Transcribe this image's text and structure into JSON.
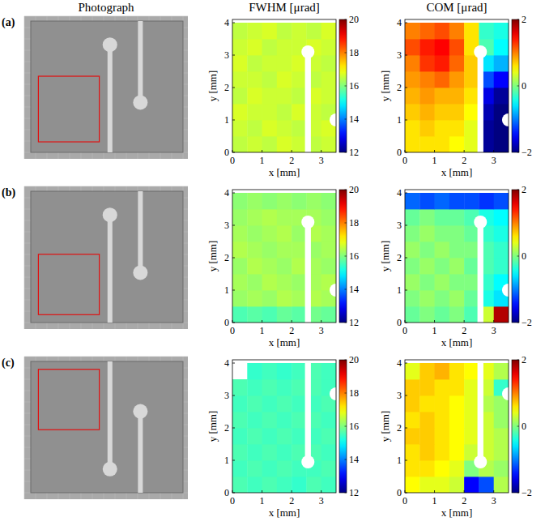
{
  "figure": {
    "column_titles": [
      "Photograph",
      "FWHM [μrad]",
      "COM [μrad]"
    ],
    "rows": [
      "(a)",
      "(b)",
      "(c)"
    ]
  },
  "chart_data": [
    {
      "type": "heatmap",
      "xlabel": "x [mm]",
      "ylabel": "y [mm]",
      "xlim": [
        0,
        3.5
      ],
      "ylim": [
        0,
        4.1
      ],
      "xticks": [
        0,
        1,
        2,
        3
      ],
      "yticks": [
        0,
        1,
        2,
        3,
        4
      ],
      "x_edges": [
        0,
        0.5,
        1,
        1.5,
        2,
        2.5,
        3,
        3.5
      ],
      "y_edges": [
        0,
        0.5,
        1,
        1.5,
        2,
        2.5,
        3,
        3.5,
        4
      ],
      "color": "jet",
      "colorbar_range": [
        12,
        20
      ],
      "colorbar_ticks": [
        12,
        14,
        16,
        18,
        20
      ],
      "cells": [
        [
          16.5,
          16.6,
          16.5,
          16.7,
          16.6,
          16.5,
          16.6
        ],
        [
          16.6,
          16.5,
          16.7,
          16.6,
          16.5,
          16.6,
          16.7
        ],
        [
          16.7,
          16.6,
          16.6,
          16.5,
          16.7,
          16.6,
          16.5
        ],
        [
          16.5,
          16.7,
          16.6,
          16.6,
          16.5,
          16.7,
          16.6
        ],
        [
          16.6,
          16.6,
          16.5,
          16.7,
          16.6,
          16.5,
          16.6
        ],
        [
          16.7,
          16.5,
          16.6,
          16.6,
          16.7,
          16.6,
          16.5
        ],
        [
          16.6,
          16.7,
          16.5,
          16.6,
          16.6,
          16.7,
          16.6
        ],
        [
          16.5,
          16.6,
          16.7,
          16.5,
          16.6,
          16.5,
          16.7
        ]
      ]
    },
    {
      "type": "heatmap",
      "xlabel": "x [mm]",
      "ylabel": "y [mm]",
      "xlim": [
        0,
        3.5
      ],
      "ylim": [
        0,
        4.1
      ],
      "xticks": [
        0,
        1,
        2,
        3
      ],
      "yticks": [
        0,
        1,
        2,
        3,
        4
      ],
      "x_edges": [
        0,
        0.5,
        1,
        1.5,
        2,
        2.5,
        3,
        3.5
      ],
      "y_edges": [
        0,
        0.5,
        1,
        1.5,
        2,
        2.5,
        3,
        3.5,
        4
      ],
      "color": "jet",
      "colorbar_range": [
        -2,
        2
      ],
      "colorbar_ticks": [
        {
          "value": -2,
          "label": "−2"
        },
        0,
        2
      ],
      "cells": [
        [
          0.6,
          0.6,
          0.6,
          0.5,
          0.4,
          -1.9,
          -2.0
        ],
        [
          0.6,
          0.7,
          0.6,
          0.6,
          0.4,
          -1.9,
          -2.0
        ],
        [
          0.7,
          0.8,
          0.7,
          0.7,
          0.5,
          -1.8,
          -2.0
        ],
        [
          0.8,
          0.9,
          0.8,
          0.8,
          0.6,
          -1.6,
          -1.9
        ],
        [
          0.9,
          1.0,
          1.1,
          0.9,
          0.7,
          -1.2,
          -1.5
        ],
        [
          1.0,
          1.3,
          1.4,
          1.1,
          0.7,
          -0.6,
          -0.8
        ],
        [
          1.2,
          1.4,
          1.5,
          1.2,
          0.6,
          -0.2,
          -0.5
        ],
        [
          1.0,
          1.1,
          1.2,
          1.0,
          0.6,
          -0.3,
          -0.4
        ]
      ]
    },
    {
      "type": "heatmap",
      "xlabel": "x [mm]",
      "ylabel": "y [mm]",
      "xlim": [
        0,
        3.5
      ],
      "ylim": [
        0,
        4.1
      ],
      "xticks": [
        0,
        1,
        2,
        3
      ],
      "yticks": [
        0,
        1,
        2,
        3,
        4
      ],
      "x_edges": [
        0,
        0.5,
        1,
        1.5,
        2,
        2.5,
        3,
        3.5
      ],
      "y_edges": [
        0,
        0.5,
        1,
        1.5,
        2,
        2.5,
        3,
        3.5,
        4
      ],
      "color": "jet",
      "colorbar_range": [
        12,
        20
      ],
      "colorbar_ticks": [
        12,
        14,
        16,
        18,
        20
      ],
      "cells": [
        [
          15.6,
          15.7,
          15.6,
          15.8,
          15.7,
          15.9,
          15.8
        ],
        [
          16.2,
          16.3,
          16.2,
          16.4,
          16.3,
          16.4,
          16.3
        ],
        [
          16.3,
          16.2,
          16.4,
          16.3,
          16.2,
          16.3,
          16.4
        ],
        [
          16.2,
          16.4,
          16.3,
          16.2,
          16.4,
          16.3,
          16.2
        ],
        [
          16.4,
          16.3,
          16.2,
          16.3,
          16.3,
          16.2,
          16.3
        ],
        [
          16.3,
          16.2,
          16.3,
          16.4,
          16.2,
          16.4,
          16.3
        ],
        [
          16.2,
          16.3,
          16.4,
          16.3,
          16.3,
          16.3,
          16.2
        ],
        [
          16.1,
          16.2,
          16.1,
          16.2,
          16.1,
          16.2,
          16.1
        ]
      ]
    },
    {
      "type": "heatmap",
      "xlabel": "x [mm]",
      "ylabel": "y [mm]",
      "xlim": [
        0,
        3.5
      ],
      "ylim": [
        0,
        4.1
      ],
      "xticks": [
        0,
        1,
        2,
        3
      ],
      "yticks": [
        0,
        1,
        2,
        3,
        4
      ],
      "x_edges": [
        0,
        0.5,
        1,
        1.5,
        2,
        2.5,
        3,
        3.5
      ],
      "y_edges": [
        0,
        0.5,
        1,
        1.5,
        2,
        2.5,
        3,
        3.5,
        4
      ],
      "color": "jet",
      "colorbar_range": [
        -2,
        2
      ],
      "colorbar_ticks": [
        {
          "value": -2,
          "label": "−2"
        },
        0,
        2
      ],
      "cells": [
        [
          -0.1,
          0.0,
          -0.1,
          0.0,
          -0.2,
          0.3,
          1.8
        ],
        [
          0.0,
          0.1,
          0.0,
          0.1,
          -0.1,
          -0.4,
          -0.6
        ],
        [
          0.1,
          0.0,
          0.1,
          0.0,
          0.0,
          -0.3,
          -0.5
        ],
        [
          0.0,
          0.1,
          0.0,
          0.1,
          -0.1,
          -0.2,
          -0.3
        ],
        [
          0.1,
          0.0,
          0.1,
          0.0,
          0.0,
          -0.2,
          -0.3
        ],
        [
          0.0,
          0.1,
          0.0,
          0.0,
          -0.1,
          -0.3,
          -0.4
        ],
        [
          -0.1,
          0.0,
          -0.1,
          -0.1,
          -0.2,
          -0.4,
          -0.5
        ],
        [
          -1.1,
          -1.2,
          -1.1,
          -1.2,
          -1.2,
          -1.3,
          -1.2
        ]
      ]
    },
    {
      "type": "heatmap",
      "xlabel": "x [mm]",
      "ylabel": "y [mm]",
      "xlim": [
        0,
        3.5
      ],
      "ylim": [
        0,
        4.1
      ],
      "xticks": [
        0,
        1,
        2,
        3
      ],
      "yticks": [
        0,
        1,
        2,
        3,
        4
      ],
      "x_edges": [
        0,
        0.5,
        1,
        1.5,
        2,
        2.5,
        3,
        3.5
      ],
      "y_edges": [
        0,
        0.5,
        1,
        1.5,
        2,
        2.5,
        3,
        3.5,
        4
      ],
      "color": "jet",
      "colorbar_range": [
        12,
        20
      ],
      "colorbar_ticks": [
        12,
        14,
        16,
        18,
        20
      ],
      "cells": [
        [
          15.6,
          15.5,
          15.6,
          15.5,
          15.4,
          15.6,
          15.5
        ],
        [
          15.5,
          15.6,
          15.5,
          15.6,
          15.5,
          15.5,
          15.6
        ],
        [
          15.6,
          15.5,
          15.6,
          15.5,
          15.6,
          15.6,
          15.5
        ],
        [
          15.5,
          15.6,
          15.5,
          15.6,
          15.5,
          15.5,
          15.6
        ],
        [
          15.6,
          15.5,
          15.6,
          15.5,
          15.6,
          15.6,
          15.5
        ],
        [
          15.5,
          15.6,
          15.5,
          15.6,
          15.5,
          15.5,
          15.6
        ],
        [
          15.6,
          15.5,
          15.6,
          15.5,
          15.6,
          15.6,
          15.5
        ],
        [
          null,
          15.4,
          15.5,
          15.4,
          15.5,
          15.6,
          15.5
        ]
      ]
    },
    {
      "type": "heatmap",
      "xlabel": "x [mm]",
      "ylabel": "y [mm]",
      "xlim": [
        0,
        3.5
      ],
      "ylim": [
        0,
        4.1
      ],
      "xticks": [
        0,
        1,
        2,
        3
      ],
      "yticks": [
        0,
        1,
        2,
        3,
        4
      ],
      "x_edges": [
        0,
        0.5,
        1,
        1.5,
        2,
        2.5,
        3,
        3.5
      ],
      "y_edges": [
        0,
        0.5,
        1,
        1.5,
        2,
        2.5,
        3,
        3.5,
        4
      ],
      "color": "jet",
      "colorbar_range": [
        -2,
        2
      ],
      "colorbar_ticks": [
        {
          "value": -2,
          "label": "−2"
        },
        0,
        2
      ],
      "cells": [
        [
          0.5,
          0.4,
          0.4,
          0.3,
          -1.5,
          -1.2,
          0.2
        ],
        [
          0.6,
          0.6,
          0.5,
          0.4,
          0.0,
          0.2,
          0.1
        ],
        [
          0.6,
          0.7,
          0.6,
          0.5,
          0.3,
          0.3,
          0.2
        ],
        [
          0.7,
          0.7,
          0.6,
          0.5,
          0.4,
          0.3,
          0.2
        ],
        [
          0.6,
          0.7,
          0.6,
          0.5,
          0.4,
          0.3,
          0.1
        ],
        [
          0.7,
          0.6,
          0.6,
          0.5,
          0.4,
          0.2,
          0.1
        ],
        [
          0.7,
          0.7,
          0.6,
          0.6,
          0.4,
          0.3,
          -0.3
        ],
        [
          0.4,
          0.7,
          0.8,
          0.6,
          0.5,
          0.4,
          0.2
        ]
      ]
    }
  ]
}
